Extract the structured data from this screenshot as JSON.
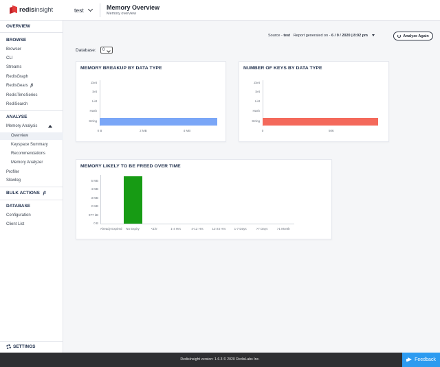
{
  "app": {
    "brand_bold": "redis",
    "brand_light": "insight"
  },
  "header": {
    "database": "test",
    "title": "Memory Overview",
    "subtitle": "Memory overview"
  },
  "sidebar": {
    "overview": "OVERVIEW",
    "browse_title": "BROWSE",
    "browse_items": [
      "Browser",
      "CLI",
      "Streams",
      "RedisGraph",
      "RedisGears",
      "RedisTimeSeries",
      "RediSearch"
    ],
    "beta_mark": "β",
    "analyse_title": "ANALYSE",
    "memory_analysis": "Memory Analysis",
    "memory_analysis_items": [
      "Overview",
      "Keyspace Summary",
      "Recommendations",
      "Memory Analyzer"
    ],
    "profiler": "Profiler",
    "slowlog": "Slowlog",
    "bulk_actions": "BULK ACTIONS",
    "database_title": "DATABASE",
    "database_items": [
      "Configuration",
      "Client List"
    ],
    "settings": "SETTINGS"
  },
  "toolbar": {
    "source_label": "Source - ",
    "source_value": "test",
    "report_label": "Report generated on - ",
    "report_value": "6 / 9 / 2020 | 8:02 pm",
    "analyze_button": "Analyze Again",
    "database_label": "Database:",
    "database_value": "0"
  },
  "footer": {
    "version": "RedisInsight version: 1.6.3 © 2020 RedisLabs Inc.",
    "feedback": "Feedback"
  },
  "colors": {
    "memory_bar": "#7aa6f7",
    "keys_bar": "#f4695b",
    "freed_bar": "#179b14",
    "accent": "#2d9bf0"
  },
  "chart_data": [
    {
      "type": "bar",
      "orientation": "horizontal",
      "title": "MEMORY BREAKUP BY DATA TYPE",
      "categories": [
        "Zset",
        "Set",
        "List",
        "Hash",
        "String"
      ],
      "values": [
        0,
        0,
        0,
        0,
        5.4
      ],
      "unit": "MB",
      "xticks": [
        "0 B",
        "2 MB",
        "4 MB"
      ],
      "xtick_values": [
        0,
        2,
        4
      ],
      "xlim": [
        0,
        5.55
      ]
    },
    {
      "type": "bar",
      "orientation": "horizontal",
      "title": "NUMBER OF KEYS BY DATA TYPE",
      "categories": [
        "Zset",
        "Set",
        "List",
        "Hash",
        "String"
      ],
      "values": [
        0,
        0,
        0,
        0,
        84000
      ],
      "xticks": [
        "0",
        "50K"
      ],
      "xtick_values": [
        0,
        50000
      ],
      "xlim": [
        0,
        88000
      ]
    },
    {
      "type": "bar",
      "title": "MEMORY LIKELY TO BE FREED OVER TIME",
      "categories": [
        "Already Expired",
        "No Expiry",
        "<1hr",
        "1-4 Hrs",
        "4-12 Hrs",
        "12-24 Hrs",
        "1-7 Days",
        ">7 Days",
        ">1 Month"
      ],
      "values": [
        0,
        5.4,
        0,
        0,
        0,
        0,
        0,
        0,
        0
      ],
      "unit": "MB",
      "yticks": [
        "0 B",
        "977 kB",
        "2 MB",
        "3 MB",
        "4 MB",
        "5 MB"
      ],
      "ytick_values": [
        0,
        0.954,
        1.954,
        2.93,
        3.907,
        4.883
      ],
      "ylim": [
        0,
        5.55
      ]
    }
  ]
}
